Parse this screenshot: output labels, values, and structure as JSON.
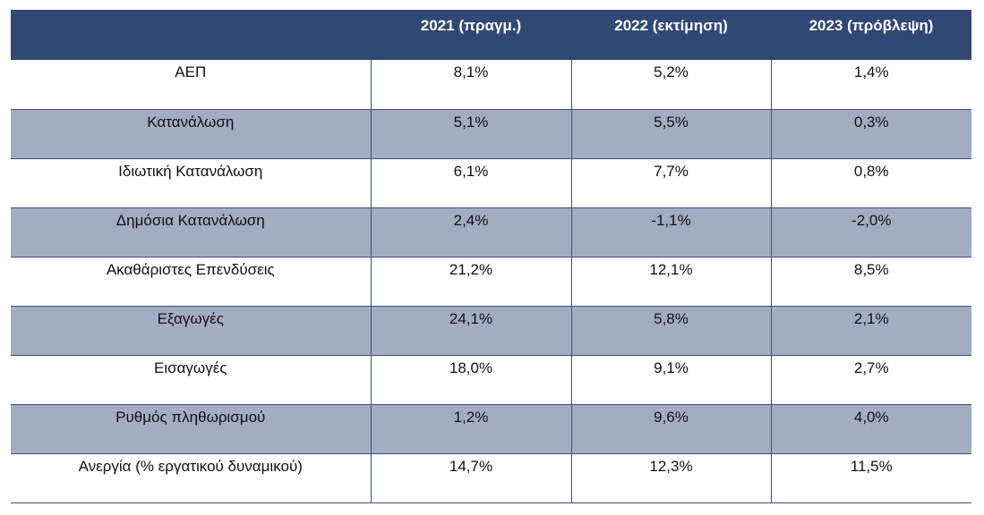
{
  "table": {
    "headers": [
      "",
      "2021 (πραγμ.)",
      "2022 (εκτίμηση)",
      "2023 (πρόβλεψη)"
    ],
    "rows": [
      {
        "label": "ΑΕΠ",
        "values": [
          "8,1%",
          "5,2%",
          "1,4%"
        ]
      },
      {
        "label": "Κατανάλωση",
        "values": [
          "5,1%",
          "5,5%",
          "0,3%"
        ]
      },
      {
        "label": "Ιδιωτική Κατανάλωση",
        "values": [
          "6,1%",
          "7,7%",
          "0,8%"
        ]
      },
      {
        "label": "Δημόσια Κατανάλωση",
        "values": [
          "2,4%",
          "-1,1%",
          "-2,0%"
        ]
      },
      {
        "label": "Ακαθάριστες Επενδύσεις",
        "values": [
          "21,2%",
          "12,1%",
          "8,5%"
        ]
      },
      {
        "label": "Εξαγωγές",
        "values": [
          "24,1%",
          "5,8%",
          "2,1%"
        ]
      },
      {
        "label": "Εισαγωγές",
        "values": [
          "18,0%",
          "9,1%",
          "2,7%"
        ]
      },
      {
        "label": "Ρυθμός πληθωρισμού",
        "values": [
          "1,2%",
          "9,6%",
          "4,0%"
        ]
      },
      {
        "label": "Ανεργία (% εργατικού δυναμικού)",
        "values": [
          "14,7%",
          "12,3%",
          "11,5%"
        ]
      }
    ]
  },
  "colors": {
    "header_bg": "#314774",
    "shade_row_bg": "#a2adc3",
    "border": "#3b4f7c"
  }
}
